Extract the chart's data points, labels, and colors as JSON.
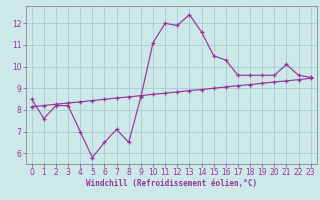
{
  "xlabel": "Windchill (Refroidissement éolien,°C)",
  "background_color": "#cce8e8",
  "line_color": "#993399",
  "grid_color": "#aacccc",
  "spine_color": "#888899",
  "x_all": [
    0,
    1,
    2,
    3,
    4,
    5,
    6,
    7,
    8,
    9,
    10,
    11,
    12,
    13,
    14,
    15,
    16,
    17,
    18,
    19,
    20,
    21,
    22,
    23
  ],
  "y_curve": [
    8.5,
    7.6,
    8.2,
    8.2,
    7.0,
    5.8,
    6.5,
    7.1,
    6.5,
    8.6,
    11.1,
    12.0,
    11.9,
    12.4,
    11.6,
    10.5,
    10.3,
    9.6,
    9.6,
    9.6,
    9.6,
    10.1,
    9.6,
    9.5
  ],
  "x_trend": [
    0,
    1,
    2,
    3,
    4,
    5,
    6,
    7,
    8,
    9,
    10,
    11,
    12,
    13,
    14,
    15,
    16,
    17,
    18,
    19,
    20,
    21,
    22,
    23
  ],
  "y_trend": [
    8.15,
    8.2,
    8.26,
    8.32,
    8.37,
    8.43,
    8.49,
    8.55,
    8.6,
    8.66,
    8.72,
    8.77,
    8.83,
    8.89,
    8.94,
    9.0,
    9.06,
    9.12,
    9.17,
    9.23,
    9.29,
    9.34,
    9.4,
    9.46
  ],
  "ylim": [
    5.5,
    12.8
  ],
  "xlim": [
    -0.5,
    23.5
  ],
  "yticks": [
    6,
    7,
    8,
    9,
    10,
    11,
    12
  ],
  "xticks": [
    0,
    1,
    2,
    3,
    4,
    5,
    6,
    7,
    8,
    9,
    10,
    11,
    12,
    13,
    14,
    15,
    16,
    17,
    18,
    19,
    20,
    21,
    22,
    23
  ],
  "tick_fontsize": 5.5,
  "xlabel_fontsize": 5.5
}
